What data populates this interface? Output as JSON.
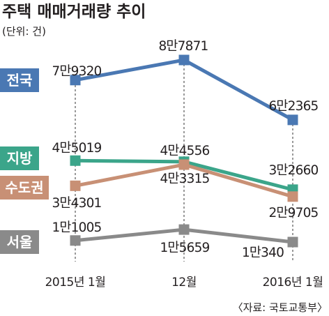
{
  "chart_data": {
    "type": "line",
    "title": "주택 매매거래량 추이",
    "unit_note": "(단위: 건)",
    "source": "〈자료: 국토교통부〉",
    "categories": [
      "2015년 1월",
      "12월",
      "2016년 1월"
    ],
    "series": [
      {
        "name": "전국",
        "values": [
          79320,
          87871,
          62365
        ],
        "labels": [
          "7만9320",
          "8만7871",
          "6만2365"
        ],
        "color": "#4a78b3"
      },
      {
        "name": "지방",
        "values": [
          45019,
          44556,
          32660
        ],
        "labels": [
          "4만5019",
          "4만4556",
          "3만2660"
        ],
        "color": "#3ba58a"
      },
      {
        "name": "수도권",
        "values": [
          34301,
          43315,
          29705
        ],
        "labels": [
          "3만4301",
          "4만3315",
          "2만9705"
        ],
        "color": "#c89075"
      },
      {
        "name": "서울",
        "values": [
          11005,
          15659,
          10340
        ],
        "labels": [
          "1만1005",
          "1만5659",
          "1만340"
        ],
        "color": "#8a8a8a"
      }
    ]
  }
}
